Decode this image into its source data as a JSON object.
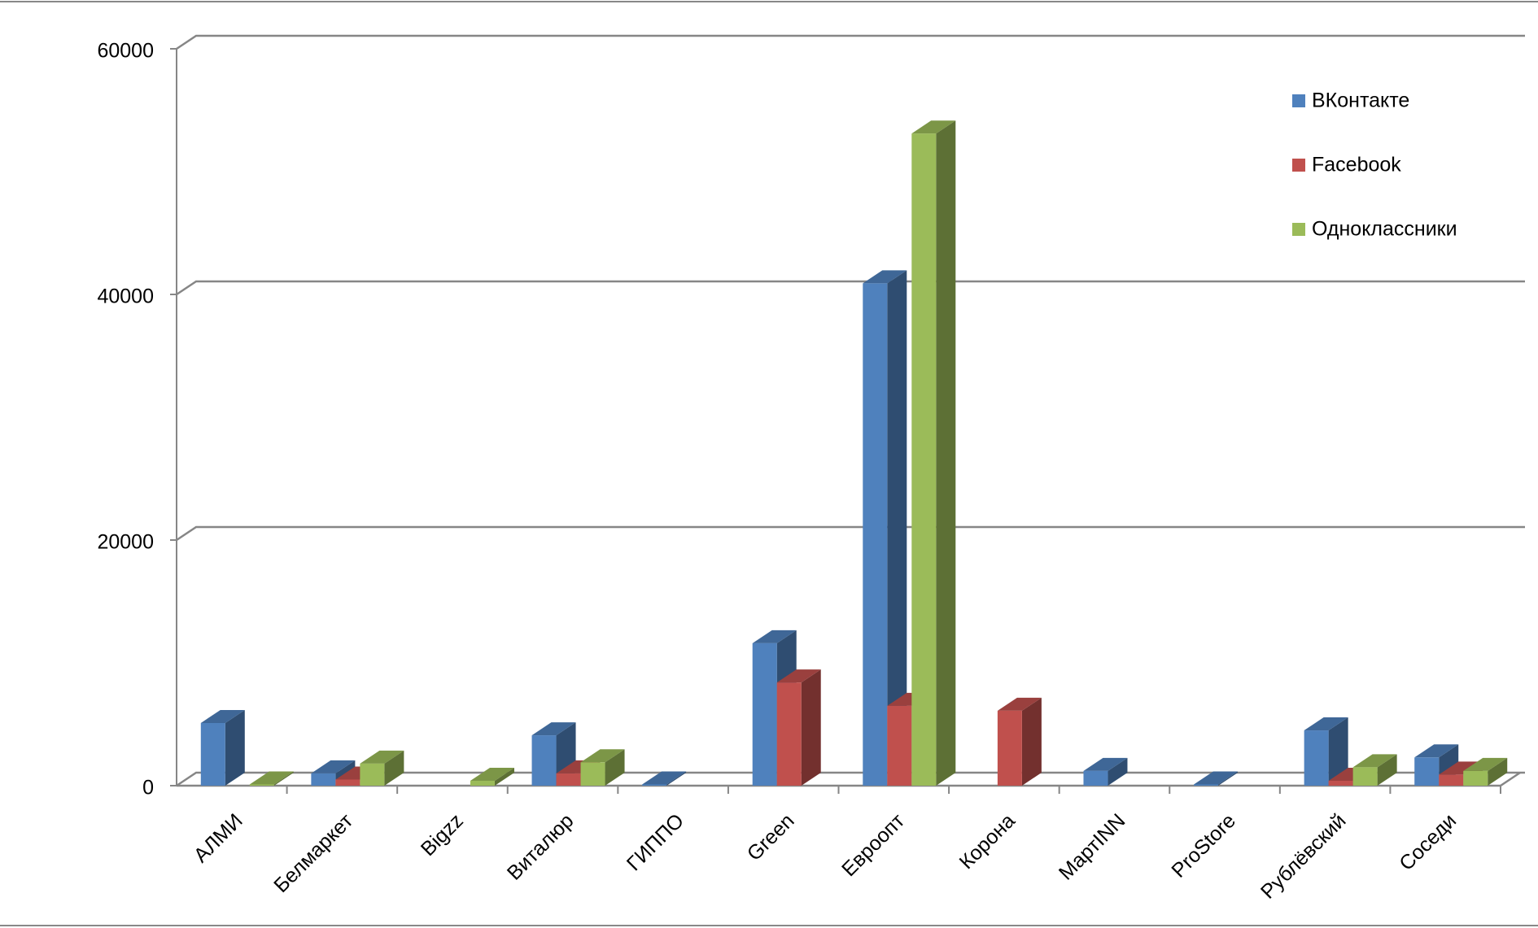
{
  "chart_data": {
    "type": "bar3d",
    "categories": [
      "АЛМИ",
      "Белмаркет",
      "Bigzz",
      "Виталюр",
      "ГИППО",
      "Green",
      "Евроопт",
      "Корона",
      "МартINN",
      "ProStore",
      "Рублёвский",
      "Соседи"
    ],
    "series": [
      {
        "name": "ВКонтакте",
        "color": "#4f81bd",
        "values": [
          5100,
          1000,
          null,
          4100,
          100,
          11600,
          40900,
          null,
          1200,
          100,
          4500,
          2300
        ]
      },
      {
        "name": "Facebook",
        "color": "#c0504d",
        "values": [
          null,
          500,
          null,
          1000,
          null,
          8400,
          6500,
          6100,
          null,
          null,
          400,
          900
        ]
      },
      {
        "name": "Одноклассники",
        "color": "#9bbb59",
        "values": [
          100,
          1800,
          400,
          1900,
          null,
          null,
          53100,
          null,
          null,
          null,
          1500,
          1200
        ]
      }
    ],
    "ylim": [
      0,
      60000
    ],
    "yticks": [
      0,
      20000,
      40000,
      60000
    ],
    "grid": true,
    "legend": "right"
  }
}
